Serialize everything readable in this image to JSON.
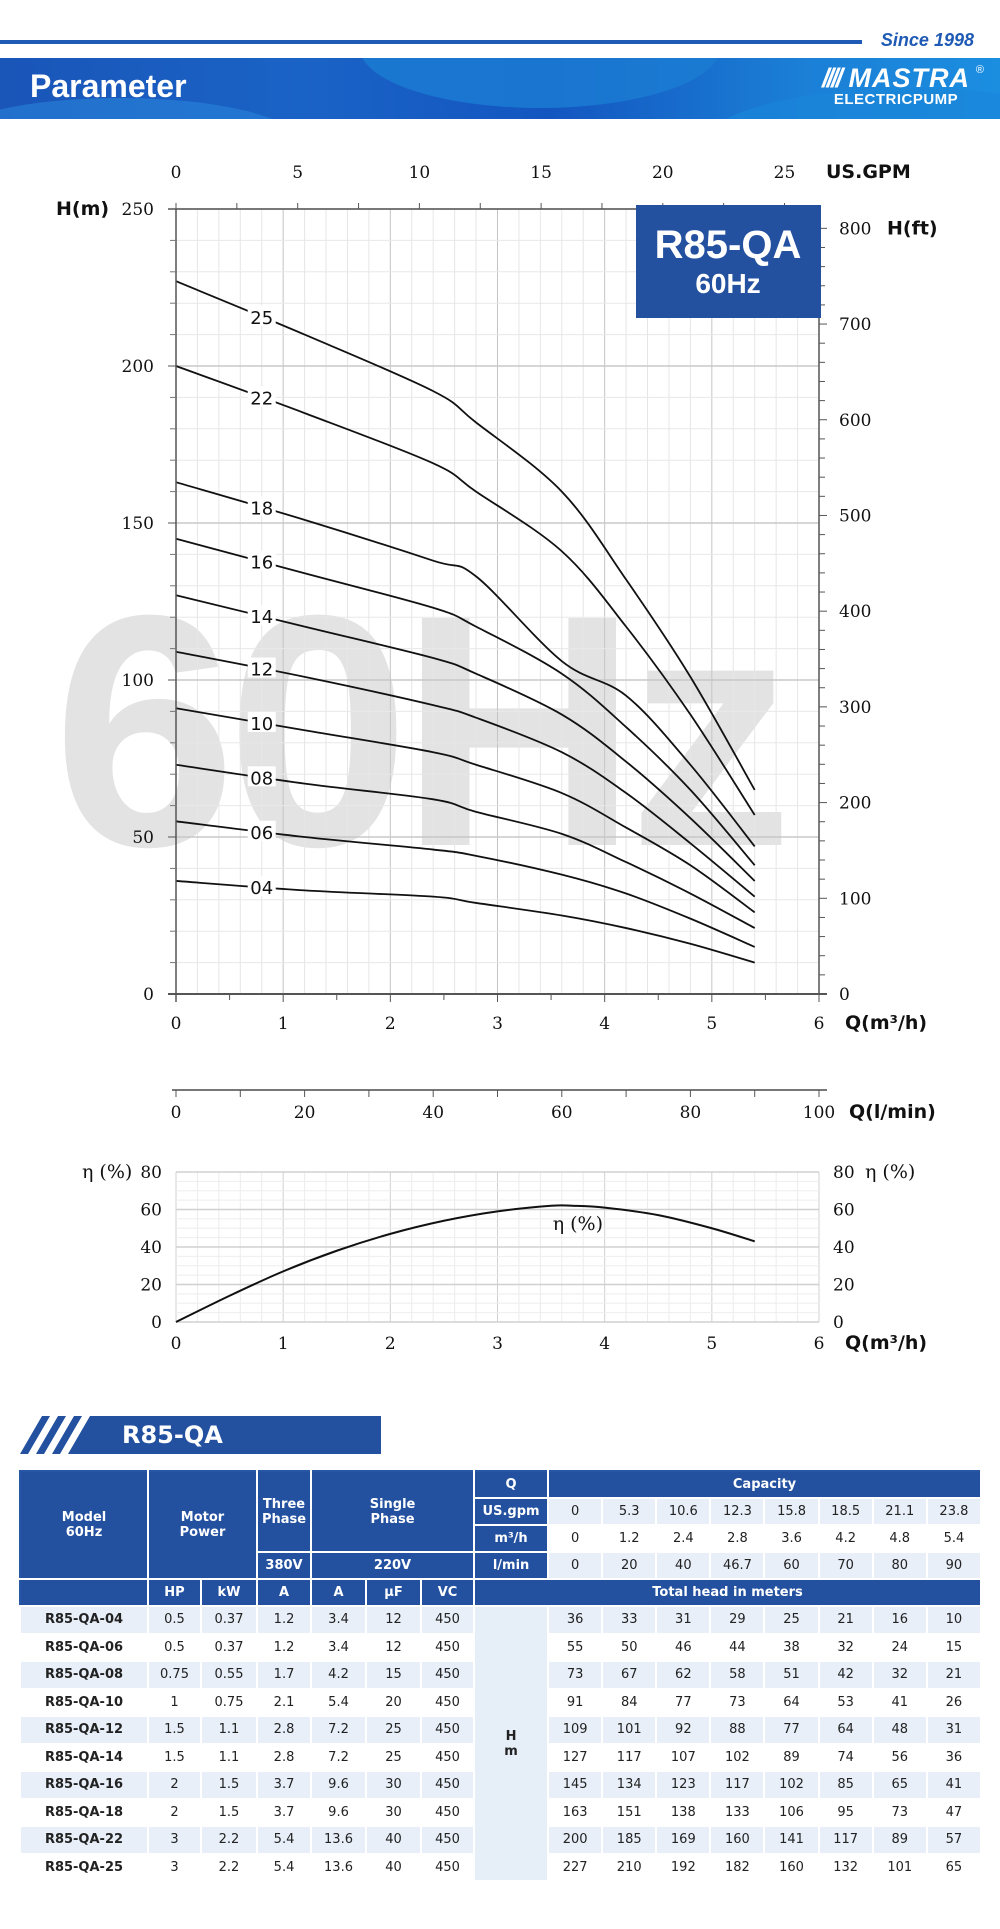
{
  "header": {
    "since": "Since 1998",
    "title": "Parameter",
    "logo_mark": "MASTRA",
    "logo_sub": "ELECTRICPUMP",
    "logo_reg": "®",
    "brand_color": "#1f5bb5"
  },
  "chart_badge": {
    "model": "R85-QA",
    "freq": "60Hz",
    "color": "#2351a0"
  },
  "watermark": "60Hz",
  "chart_data": [
    {
      "type": "line",
      "title": "R85-QA 60Hz Performance Curves",
      "xlabel": "Q(m³/h)",
      "ylabel": "H(m)",
      "y2label": "H(ft)",
      "x2label": "US.GPM",
      "x3label": "Q(l/min)",
      "xlim": [
        0,
        6
      ],
      "ylim": [
        0,
        250
      ],
      "grid": true,
      "x_ticks": [
        0,
        1,
        2,
        3,
        4,
        5,
        6
      ],
      "y_ticks": [
        0,
        50,
        100,
        150,
        200,
        250
      ],
      "y2_ticks": [
        0,
        100,
        200,
        300,
        400,
        500,
        600,
        700,
        800
      ],
      "x2_ticks": [
        0,
        5,
        10,
        15,
        20,
        25
      ],
      "x3_ticks": [
        0,
        20,
        40,
        60,
        80,
        100
      ],
      "x": [
        0,
        1.2,
        2.4,
        2.8,
        3.6,
        4.2,
        4.8,
        5.4
      ],
      "series": [
        {
          "name": "04",
          "values": [
            36,
            33,
            31,
            29,
            25,
            21,
            16,
            10
          ]
        },
        {
          "name": "06",
          "values": [
            55,
            50,
            46,
            44,
            38,
            32,
            24,
            15
          ]
        },
        {
          "name": "08",
          "values": [
            73,
            67,
            62,
            58,
            51,
            42,
            32,
            21
          ]
        },
        {
          "name": "10",
          "values": [
            91,
            84,
            77,
            73,
            64,
            53,
            41,
            26
          ]
        },
        {
          "name": "12",
          "values": [
            109,
            101,
            92,
            88,
            77,
            64,
            48,
            31
          ]
        },
        {
          "name": "14",
          "values": [
            127,
            117,
            107,
            102,
            89,
            74,
            56,
            36
          ]
        },
        {
          "name": "16",
          "values": [
            145,
            134,
            123,
            117,
            102,
            85,
            65,
            41
          ]
        },
        {
          "name": "18",
          "values": [
            163,
            151,
            138,
            133,
            106,
            95,
            73,
            47
          ]
        },
        {
          "name": "22",
          "values": [
            200,
            185,
            169,
            160,
            141,
            117,
            89,
            57
          ]
        },
        {
          "name": "25",
          "values": [
            227,
            210,
            192,
            182,
            160,
            132,
            101,
            65
          ]
        }
      ]
    },
    {
      "type": "line",
      "title": "Efficiency",
      "xlabel": "Q(m³/h)",
      "ylabel": "η (%)",
      "xlim": [
        0,
        6
      ],
      "ylim": [
        0,
        80
      ],
      "grid": true,
      "x_ticks": [
        0,
        1,
        2,
        3,
        4,
        5,
        6
      ],
      "y_ticks": [
        0,
        20,
        40,
        60,
        80
      ],
      "x": [
        0,
        0.5,
        1,
        1.5,
        2,
        2.5,
        3,
        3.5,
        3.7,
        4,
        4.5,
        5,
        5.4
      ],
      "series": [
        {
          "name": "η (%)",
          "values": [
            0,
            14,
            27,
            38,
            47,
            54,
            59,
            62,
            62,
            61,
            57,
            50,
            43
          ]
        }
      ]
    }
  ],
  "axes": {
    "h_m_label": "H(m)",
    "h_ft_label": "H(ft)",
    "gpm_label": "US.GPM",
    "q_label": "Q(m³/h)",
    "lmin_label": "Q(l/min)",
    "eta_label": "η (%)",
    "eta_curve_label": "η (%)"
  },
  "section": {
    "title": "R85-QA"
  },
  "table": {
    "h_model": "Model",
    "h_model2": "60Hz",
    "h_motor": "Motor",
    "h_motor2": "Power",
    "h_three": "Three",
    "h_three2": "Phase",
    "h_single": "Single",
    "h_single2": "Phase",
    "h_380": "380V",
    "h_220": "220V",
    "h_q": "Q",
    "h_capacity": "Capacity",
    "h_usgpm": "US.gpm",
    "h_m3h": "m³/h",
    "h_lmin": "l/min",
    "h_hp": "HP",
    "h_kw": "kW",
    "h_a3": "A",
    "h_a1": "A",
    "h_uf": "μF",
    "h_vc": "VC",
    "h_total": "Total head in meters",
    "h_h": "H",
    "h_m": "m",
    "usgpm": [
      "0",
      "5.3",
      "10.6",
      "12.3",
      "15.8",
      "18.5",
      "21.1",
      "23.8"
    ],
    "m3h": [
      "0",
      "1.2",
      "2.4",
      "2.8",
      "3.6",
      "4.2",
      "4.8",
      "5.4"
    ],
    "lmin": [
      "0",
      "20",
      "40",
      "46.7",
      "60",
      "70",
      "80",
      "90"
    ],
    "rows": [
      {
        "model": "R85-QA-04",
        "hp": "0.5",
        "kw": "0.37",
        "a3": "1.2",
        "a1": "3.4",
        "uf": "12",
        "vc": "450",
        "h": [
          "36",
          "33",
          "31",
          "29",
          "25",
          "21",
          "16",
          "10"
        ]
      },
      {
        "model": "R85-QA-06",
        "hp": "0.5",
        "kw": "0.37",
        "a3": "1.2",
        "a1": "3.4",
        "uf": "12",
        "vc": "450",
        "h": [
          "55",
          "50",
          "46",
          "44",
          "38",
          "32",
          "24",
          "15"
        ]
      },
      {
        "model": "R85-QA-08",
        "hp": "0.75",
        "kw": "0.55",
        "a3": "1.7",
        "a1": "4.2",
        "uf": "15",
        "vc": "450",
        "h": [
          "73",
          "67",
          "62",
          "58",
          "51",
          "42",
          "32",
          "21"
        ]
      },
      {
        "model": "R85-QA-10",
        "hp": "1",
        "kw": "0.75",
        "a3": "2.1",
        "a1": "5.4",
        "uf": "20",
        "vc": "450",
        "h": [
          "91",
          "84",
          "77",
          "73",
          "64",
          "53",
          "41",
          "26"
        ]
      },
      {
        "model": "R85-QA-12",
        "hp": "1.5",
        "kw": "1.1",
        "a3": "2.8",
        "a1": "7.2",
        "uf": "25",
        "vc": "450",
        "h": [
          "109",
          "101",
          "92",
          "88",
          "77",
          "64",
          "48",
          "31"
        ]
      },
      {
        "model": "R85-QA-14",
        "hp": "1.5",
        "kw": "1.1",
        "a3": "2.8",
        "a1": "7.2",
        "uf": "25",
        "vc": "450",
        "h": [
          "127",
          "117",
          "107",
          "102",
          "89",
          "74",
          "56",
          "36"
        ]
      },
      {
        "model": "R85-QA-16",
        "hp": "2",
        "kw": "1.5",
        "a3": "3.7",
        "a1": "9.6",
        "uf": "30",
        "vc": "450",
        "h": [
          "145",
          "134",
          "123",
          "117",
          "102",
          "85",
          "65",
          "41"
        ]
      },
      {
        "model": "R85-QA-18",
        "hp": "2",
        "kw": "1.5",
        "a3": "3.7",
        "a1": "9.6",
        "uf": "30",
        "vc": "450",
        "h": [
          "163",
          "151",
          "138",
          "133",
          "106",
          "95",
          "73",
          "47"
        ]
      },
      {
        "model": "R85-QA-22",
        "hp": "3",
        "kw": "2.2",
        "a3": "5.4",
        "a1": "13.6",
        "uf": "40",
        "vc": "450",
        "h": [
          "200",
          "185",
          "169",
          "160",
          "141",
          "117",
          "89",
          "57"
        ]
      },
      {
        "model": "R85-QA-25",
        "hp": "3",
        "kw": "2.2",
        "a3": "5.4",
        "a1": "13.6",
        "uf": "40",
        "vc": "450",
        "h": [
          "227",
          "210",
          "192",
          "182",
          "160",
          "132",
          "101",
          "65"
        ]
      }
    ]
  }
}
